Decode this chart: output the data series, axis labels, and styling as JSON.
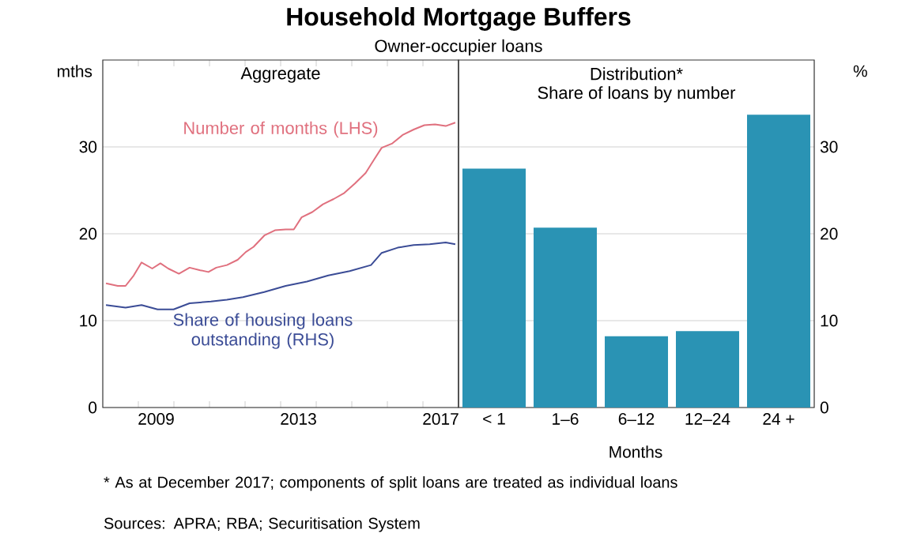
{
  "chart_data": [
    {
      "type": "line",
      "title": "Household Mortgage Buffers",
      "subtitle": "Owner-occupier loans",
      "ylabel": "mths",
      "annotations": [
        "Aggregate"
      ],
      "xlim": [
        2008,
        2018
      ],
      "ylim": [
        0,
        40
      ],
      "yticks": [
        0,
        10,
        20,
        30
      ],
      "xticks": [
        {
          "value": 2009,
          "label": null
        },
        {
          "value": 2009.5,
          "label": "2009"
        },
        {
          "value": 2010,
          "label": null
        },
        {
          "value": 2011,
          "label": null
        },
        {
          "value": 2012,
          "label": null
        },
        {
          "value": 2013,
          "label": null
        },
        {
          "value": 2013.5,
          "label": "2013"
        },
        {
          "value": 2014,
          "label": null
        },
        {
          "value": 2015,
          "label": null
        },
        {
          "value": 2016,
          "label": null
        },
        {
          "value": 2017,
          "label": null
        },
        {
          "value": 2017.5,
          "label": "2017"
        }
      ],
      "grid": "y",
      "series": [
        {
          "name": "Number of months (LHS)",
          "color": "#e0707e",
          "x": [
            2008.09,
            2008.42,
            2008.64,
            2008.87,
            2009.09,
            2009.39,
            2009.62,
            2009.84,
            2010.14,
            2010.44,
            2010.74,
            2010.97,
            2011.19,
            2011.49,
            2011.79,
            2012.02,
            2012.24,
            2012.54,
            2012.84,
            2013.14,
            2013.37,
            2013.59,
            2013.89,
            2014.19,
            2014.49,
            2014.79,
            2015.09,
            2015.39,
            2015.62,
            2015.84,
            2016.14,
            2016.44,
            2016.74,
            2017.04,
            2017.34,
            2017.64,
            2017.91
          ],
          "values": [
            14.3,
            14.0,
            14.0,
            15.2,
            16.7,
            16.0,
            16.6,
            16.0,
            15.4,
            16.1,
            15.8,
            15.6,
            16.1,
            16.4,
            17.0,
            17.9,
            18.5,
            19.8,
            20.4,
            20.5,
            20.5,
            21.9,
            22.5,
            23.4,
            24.0,
            24.7,
            25.8,
            27.0,
            28.5,
            29.9,
            30.4,
            31.4,
            32.0,
            32.5,
            32.6,
            32.4,
            32.8
          ]
        },
        {
          "name": "Share of housing loans outstanding (RHS)",
          "color": "#3b4c96",
          "x": [
            2008.09,
            2008.64,
            2009.09,
            2009.54,
            2009.99,
            2010.44,
            2011.04,
            2011.49,
            2011.94,
            2012.54,
            2013.14,
            2013.74,
            2014.34,
            2014.94,
            2015.54,
            2015.84,
            2016.29,
            2016.74,
            2017.19,
            2017.64,
            2017.91
          ],
          "values": [
            11.8,
            11.5,
            11.8,
            11.3,
            11.3,
            12.0,
            12.2,
            12.4,
            12.7,
            13.3,
            14.0,
            14.5,
            15.2,
            15.7,
            16.4,
            17.8,
            18.4,
            18.7,
            18.8,
            19.0,
            18.8
          ]
        }
      ]
    },
    {
      "type": "bar",
      "title": "Distribution*",
      "subtitle": "Share of loans by number",
      "xlabel": "Months",
      "ylabel": "%",
      "categories": [
        "< 1",
        "1–6",
        "6–12",
        "12–24",
        "24 +"
      ],
      "values": [
        27.5,
        20.7,
        8.2,
        8.8,
        33.7
      ],
      "color": "#2a93b4",
      "ylim": [
        0,
        40
      ],
      "yticks": [
        0,
        10,
        20,
        30
      ],
      "grid": "y",
      "annotations": [
        "* As at December 2017; components of split loans are treated as individual loans",
        "Sources: APRA; RBA; Securitisation System"
      ]
    }
  ]
}
